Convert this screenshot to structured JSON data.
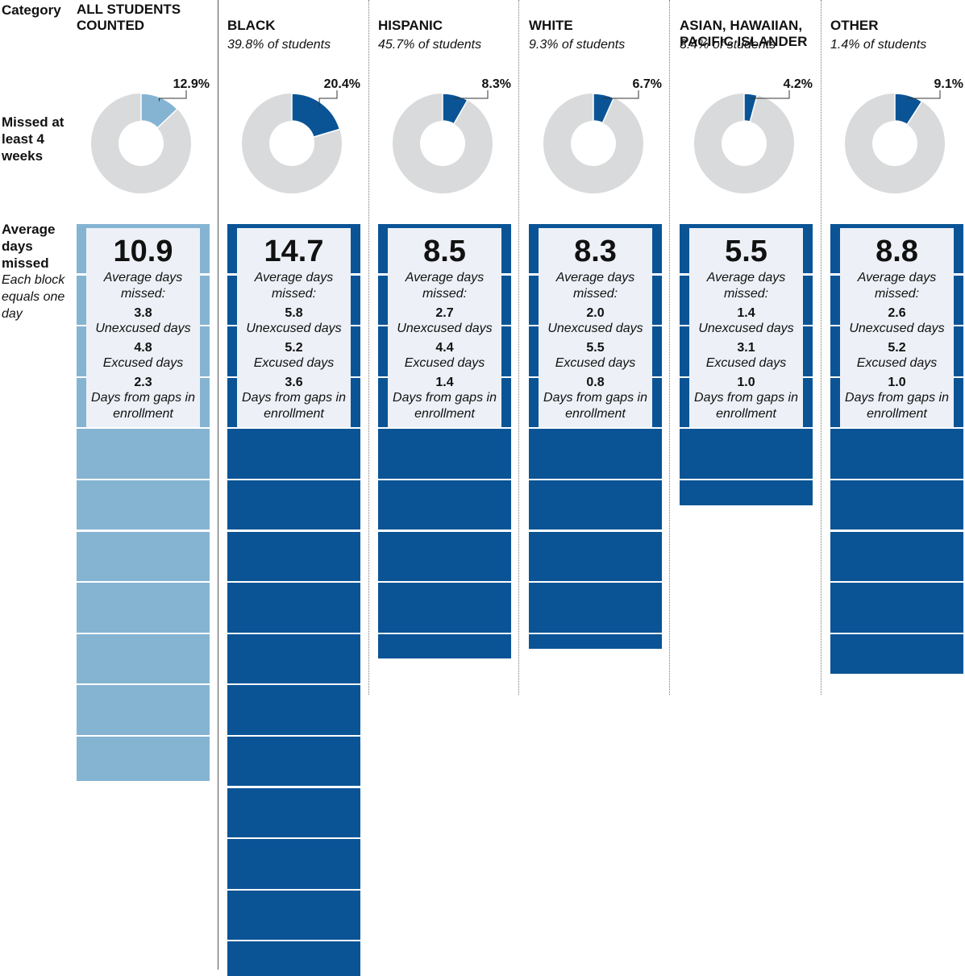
{
  "row_labels": {
    "category": "Category",
    "missed": "Missed at least 4 weeks",
    "average": "Average days missed",
    "note": "Each block equals one day"
  },
  "colors": {
    "all_students": "#85b4d3",
    "groups": "#0a5496",
    "donut_rest": "#d9dadb",
    "info_box": "#edf0f6"
  },
  "info_labels": {
    "avg_label": "Average days missed:",
    "unexcused_label": "Unexcused days",
    "excused_label": "Excused days",
    "gaps_label": "Days from gaps in enrollment"
  },
  "chart_data": [
    {
      "type": "pie",
      "title": "Missed at least 4 weeks",
      "categories": [
        "All students counted",
        "Black",
        "Hispanic",
        "White",
        "Asian, Hawaiian, Pacific Islander",
        "Other"
      ],
      "values": [
        12.9,
        20.4,
        8.3,
        6.7,
        4.2,
        9.1
      ],
      "unit": "%"
    },
    {
      "type": "bar",
      "title": "Average days missed",
      "categories": [
        "All students counted",
        "Black",
        "Hispanic",
        "White",
        "Asian, Hawaiian, Pacific Islander",
        "Other"
      ],
      "series": [
        {
          "name": "Unexcused days",
          "values": [
            3.8,
            5.8,
            2.7,
            2.0,
            1.4,
            2.6
          ]
        },
        {
          "name": "Excused days",
          "values": [
            4.8,
            5.2,
            4.4,
            5.5,
            3.1,
            5.2
          ]
        },
        {
          "name": "Days from gaps in enrollment",
          "values": [
            2.3,
            3.6,
            1.4,
            0.8,
            1.0,
            1.0
          ]
        }
      ],
      "totals": [
        10.9,
        14.7,
        8.5,
        8.3,
        5.5,
        8.8
      ],
      "note": "Each block equals one day"
    }
  ],
  "groups": [
    {
      "title": "ALL STUDENTS\nCOUNTED",
      "subtitle": "",
      "pct": 12.9,
      "pct_label": "12.9%",
      "avg": 10.9,
      "avg_label": "10.9",
      "unexcused": "3.8",
      "excused": "4.8",
      "gaps": "2.3",
      "color": "#85b4d3"
    },
    {
      "title": "BLACK",
      "subtitle": "39.8% of students",
      "pct": 20.4,
      "pct_label": "20.4%",
      "avg": 14.7,
      "avg_label": "14.7",
      "unexcused": "5.8",
      "excused": "5.2",
      "gaps": "3.6",
      "color": "#0a5496"
    },
    {
      "title": "HISPANIC",
      "subtitle": "45.7% of students",
      "pct": 8.3,
      "pct_label": "8.3%",
      "avg": 8.5,
      "avg_label": "8.5",
      "unexcused": "2.7",
      "excused": "4.4",
      "gaps": "1.4",
      "color": "#0a5496"
    },
    {
      "title": "WHITE",
      "subtitle": "9.3% of students",
      "pct": 6.7,
      "pct_label": "6.7%",
      "avg": 8.3,
      "avg_label": "8.3",
      "unexcused": "2.0",
      "excused": "5.5",
      "gaps": "0.8",
      "color": "#0a5496"
    },
    {
      "title": "ASIAN, HAWAIIAN,\nPACIFIC ISLANDER",
      "subtitle": "3.4% of students",
      "pct": 4.2,
      "pct_label": "4.2%",
      "avg": 5.5,
      "avg_label": "5.5",
      "unexcused": "1.4",
      "excused": "3.1",
      "gaps": "1.0",
      "color": "#0a5496"
    },
    {
      "title": "OTHER",
      "subtitle": "1.4% of students",
      "pct": 9.1,
      "pct_label": "9.1%",
      "avg": 8.8,
      "avg_label": "8.8",
      "unexcused": "2.6",
      "excused": "5.2",
      "gaps": "1.0",
      "color": "#0a5496"
    }
  ]
}
